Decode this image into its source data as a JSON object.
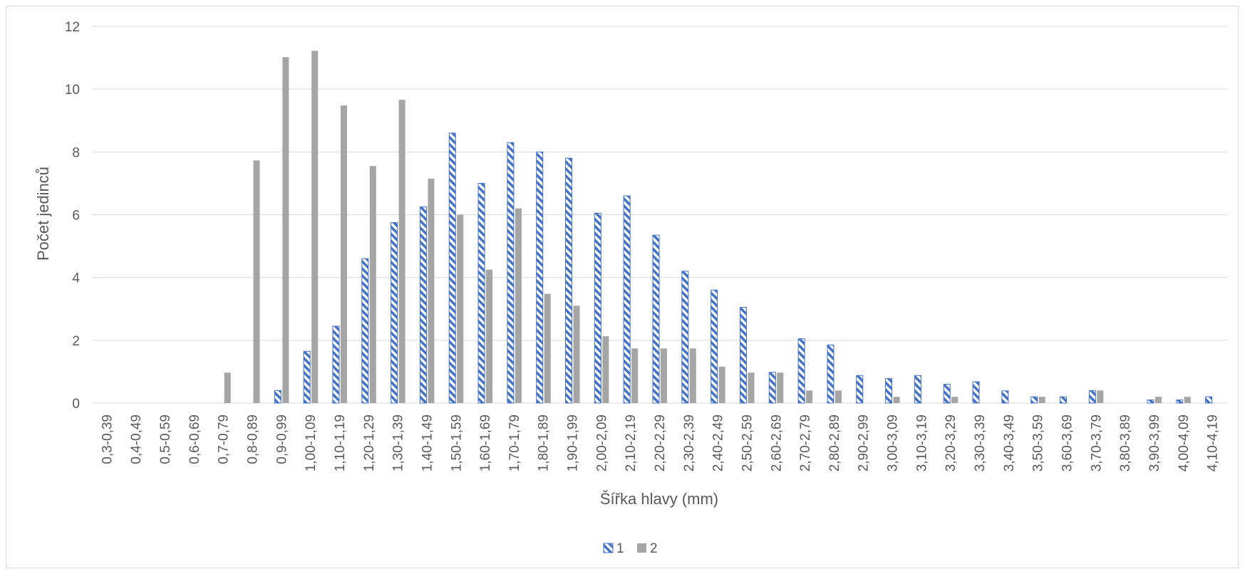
{
  "chart_data": {
    "type": "bar",
    "title": "",
    "xlabel": "Šířka hlavy (mm)",
    "ylabel": "Počet jedinců",
    "ylim": [
      0,
      12
    ],
    "yticks": [
      "0",
      "2",
      "4",
      "6",
      "8",
      "10",
      "12"
    ],
    "grid": true,
    "legend_position": "bottom",
    "categories": [
      "0,3-0,39",
      "0,4-0,49",
      "0,5-0,59",
      "0,6-0,69",
      "0,7-0,79",
      "0,8-0,89",
      "0,9-0,99",
      "1,00-1,09",
      "1,10-1,19",
      "1,20-1,29",
      "1,30-1,39",
      "1,40-1,49",
      "1,50-1,59",
      "1,60-1,69",
      "1,70-1,79",
      "1,80-1,89",
      "1,90-1,99",
      "2,00-2,09",
      "2,10-2,19",
      "2,20-2,29",
      "2,30-2,39",
      "2,40-2,49",
      "2,50-2,59",
      "2,60-2,69",
      "2,70-2,79",
      "2,80-2,89",
      "2,90-2,99",
      "3,00-3,09",
      "3,10-3,19",
      "3,20-3,29",
      "3,30-3,39",
      "3,40-3,49",
      "3,50-3,59",
      "3,60-3,69",
      "3,70-3,79",
      "3,80-3,89",
      "3,90-3,99",
      "4,00-4,09",
      "4,10-4,19"
    ],
    "series": [
      {
        "name": "1",
        "color": "#4472c4",
        "pattern": "diagonal-hatch",
        "values": [
          0,
          0,
          0,
          0,
          0,
          0,
          0.4,
          1.65,
          2.45,
          4.6,
          5.75,
          6.25,
          8.6,
          7.0,
          8.3,
          8.0,
          7.8,
          6.05,
          6.6,
          5.35,
          4.2,
          3.6,
          3.05,
          0.98,
          2.05,
          1.85,
          0.88,
          0.78,
          0.88,
          0.6,
          0.68,
          0.39,
          0.2,
          0.2,
          0.4,
          0,
          0.1,
          0.1,
          0.2
        ]
      },
      {
        "name": "2",
        "color": "#a5a5a5",
        "pattern": "solid",
        "values": [
          0,
          0,
          0,
          0,
          0.97,
          7.73,
          11.02,
          11.22,
          9.48,
          7.55,
          9.66,
          7.15,
          6.0,
          4.25,
          6.2,
          3.48,
          3.1,
          2.13,
          1.74,
          1.74,
          1.74,
          1.16,
          0.97,
          0.97,
          0.4,
          0.4,
          0,
          0.2,
          0,
          0.2,
          0,
          0,
          0.2,
          0,
          0.4,
          0,
          0.2,
          0.2,
          0
        ]
      }
    ]
  }
}
